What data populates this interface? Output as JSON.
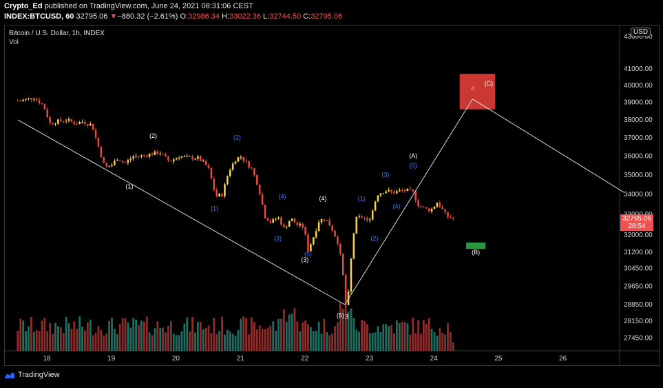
{
  "header": {
    "author": "Crypto_Ed",
    "published_text": "published on TradingView.com, June 24, 2021 08:31:06 CEST",
    "symbol": "INDEX:BTCUSD, 60",
    "last": "32795.06",
    "change_arrow": "▼",
    "change": "−880.32 (−2.61%)",
    "o_label": "O:",
    "o_value": "32986.34",
    "h_label": "H:",
    "h_value": "33022.36",
    "l_label": "L:",
    "l_value": "32744.50",
    "c_label": "C:",
    "c_value": "32795.06"
  },
  "legend": {
    "title": "Bitcoin / U.S. Dollar, 1h, INDEX",
    "volume": "Vol"
  },
  "currency_button": "USD",
  "price_tag": {
    "price": "32795.06",
    "countdown": "28:54"
  },
  "footer": {
    "brand": "TradingView"
  },
  "colors": {
    "up": "#f5d14a",
    "down": "#e5473b",
    "vol_up": "#1e6f62",
    "vol_down": "#8f2c2c",
    "wave_blue": "#3d7bff",
    "wave_white": "#ffffff",
    "target_box": "#d63a35",
    "green_box": "#2e9e44"
  },
  "chart_data": {
    "type": "candlestick",
    "y_ticks": [
      "43000.00",
      "41000.00",
      "40000.00",
      "39000.00",
      "38000.00",
      "37000.00",
      "36000.00",
      "35000.00",
      "34000.00",
      "33000.00",
      "32000.00",
      "31200.00",
      "30450.00",
      "29650.00",
      "28850.00",
      "28150.00",
      "27450.00"
    ],
    "y_log": true,
    "x_ticks": [
      "18",
      "19",
      "20",
      "21",
      "22",
      "23",
      "24",
      "25",
      "26"
    ],
    "price_path": [
      [
        17.6,
        39100
      ],
      [
        17.8,
        39300
      ],
      [
        17.95,
        38800
      ],
      [
        18.05,
        37800
      ],
      [
        18.15,
        37900
      ],
      [
        18.3,
        38000
      ],
      [
        18.45,
        37800
      ],
      [
        18.55,
        37900
      ],
      [
        18.7,
        37700
      ],
      [
        18.8,
        36500
      ],
      [
        18.9,
        35400
      ],
      [
        19.0,
        35500
      ],
      [
        19.1,
        35900
      ],
      [
        19.2,
        35600
      ],
      [
        19.35,
        36000
      ],
      [
        19.45,
        36000
      ],
      [
        19.6,
        36100
      ],
      [
        19.75,
        36200
      ],
      [
        19.9,
        35700
      ],
      [
        20.05,
        36000
      ],
      [
        20.2,
        35900
      ],
      [
        20.35,
        35900
      ],
      [
        20.5,
        35400
      ],
      [
        20.62,
        33900
      ],
      [
        20.72,
        34000
      ],
      [
        20.82,
        35200
      ],
      [
        20.92,
        35800
      ],
      [
        21.0,
        36000
      ],
      [
        21.08,
        35700
      ],
      [
        21.18,
        35300
      ],
      [
        21.28,
        34400
      ],
      [
        21.38,
        32900
      ],
      [
        21.48,
        32600
      ],
      [
        21.58,
        32900
      ],
      [
        21.68,
        32300
      ],
      [
        21.78,
        32800
      ],
      [
        21.88,
        32500
      ],
      [
        21.98,
        32400
      ],
      [
        22.05,
        31300
      ],
      [
        22.12,
        31800
      ],
      [
        22.22,
        32700
      ],
      [
        22.32,
        32800
      ],
      [
        22.42,
        32300
      ],
      [
        22.52,
        31600
      ],
      [
        22.58,
        30500
      ],
      [
        22.63,
        28800
      ],
      [
        22.68,
        29400
      ],
      [
        22.74,
        31800
      ],
      [
        22.8,
        32800
      ],
      [
        22.9,
        32900
      ],
      [
        22.98,
        32600
      ],
      [
        23.05,
        33200
      ],
      [
        23.12,
        34000
      ],
      [
        23.25,
        34200
      ],
      [
        23.38,
        34100
      ],
      [
        23.5,
        34200
      ],
      [
        23.6,
        34200
      ],
      [
        23.68,
        34100
      ],
      [
        23.75,
        33500
      ],
      [
        23.85,
        33300
      ],
      [
        23.95,
        33200
      ],
      [
        24.05,
        33600
      ],
      [
        24.12,
        33300
      ],
      [
        24.2,
        32900
      ],
      [
        24.3,
        32800
      ]
    ],
    "trendlines": [
      {
        "from": [
          17.55,
          38000
        ],
        "to": [
          22.62,
          28850
        ]
      },
      {
        "from": [
          22.62,
          28850
        ],
        "to": [
          24.6,
          39200
        ]
      },
      {
        "from": [
          24.6,
          39200
        ],
        "to": [
          26.95,
          34100
        ]
      }
    ],
    "wave_labels": [
      {
        "text": "(2)",
        "x": 19.65,
        "y": 37000,
        "color": "white"
      },
      {
        "text": "(1)",
        "x": 19.28,
        "y": 34300,
        "color": "white"
      },
      {
        "text": "(2)",
        "x": 20.95,
        "y": 36900,
        "color": "blue"
      },
      {
        "text": "(1)",
        "x": 20.6,
        "y": 33200,
        "color": "blue"
      },
      {
        "text": "(4)",
        "x": 21.65,
        "y": 33800,
        "color": "blue"
      },
      {
        "text": "(3)",
        "x": 21.58,
        "y": 31750,
        "color": "blue"
      },
      {
        "text": "(4)",
        "x": 22.28,
        "y": 33700,
        "color": "white"
      },
      {
        "text": "(5)",
        "x": 22.05,
        "y": 31000,
        "color": "blue"
      },
      {
        "text": "(3)",
        "x": 22.0,
        "y": 30750,
        "color": "white"
      },
      {
        "text": "(5)",
        "x": 22.55,
        "y": 28300,
        "color": "white"
      },
      {
        "text": "3",
        "x": 22.65,
        "y": 28250,
        "color": "white"
      },
      {
        "text": "(1)",
        "x": 22.88,
        "y": 33700,
        "color": "blue"
      },
      {
        "text": "(2)",
        "x": 23.08,
        "y": 31750,
        "color": "blue"
      },
      {
        "text": "(3)",
        "x": 23.25,
        "y": 34900,
        "color": "blue"
      },
      {
        "text": "(4)",
        "x": 23.42,
        "y": 33300,
        "color": "blue"
      },
      {
        "text": "(A)",
        "x": 23.68,
        "y": 35900,
        "color": "white"
      },
      {
        "text": "(5)",
        "x": 23.68,
        "y": 35400,
        "color": "blue"
      },
      {
        "text": "(C)",
        "x": 24.85,
        "y": 40000,
        "color": "white"
      },
      {
        "text": "4",
        "x": 24.6,
        "y": 39700,
        "color": "white"
      },
      {
        "text": "(B)",
        "x": 24.65,
        "y": 31100,
        "color": "white"
      }
    ],
    "target_zones": [
      {
        "name": "C-target",
        "x0": 24.4,
        "x1": 24.95,
        "y0": 38600,
        "y1": 40700,
        "color": "red"
      },
      {
        "name": "B-target",
        "x0": 24.5,
        "x1": 24.8,
        "y0": 31350,
        "y1": 31650,
        "color": "green"
      }
    ]
  }
}
